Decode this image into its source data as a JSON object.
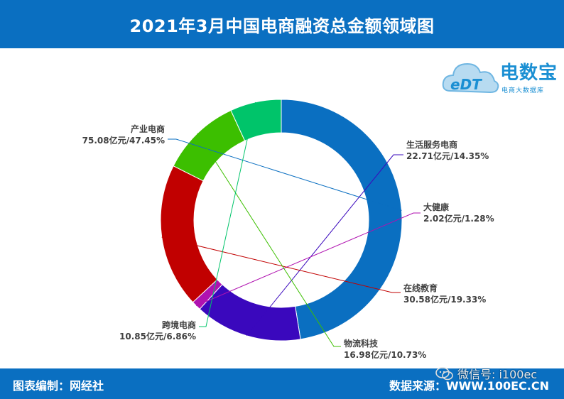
{
  "header": {
    "title": "2021年3月中国电商融资总金额领域图"
  },
  "logo": {
    "mark": "eDT",
    "title": "电数宝",
    "subtitle": "电商大数据库"
  },
  "footer": {
    "left": "图表编制：网经社",
    "right": "数据来源：WWW.100EC.CN"
  },
  "watermark": {
    "text": "微信号: i100ec",
    "icon": "wechat-icon"
  },
  "chart_data": {
    "type": "pie",
    "title": "2021年3月中国电商融资总金额领域图",
    "donut": true,
    "unit": "亿元",
    "categories": [
      "产业电商",
      "生活服务电商",
      "大健康",
      "在线教育",
      "物流科技",
      "跨境电商"
    ],
    "values": [
      75.08,
      22.71,
      2.02,
      30.58,
      16.98,
      10.85
    ],
    "percents": [
      47.45,
      14.35,
      1.28,
      19.33,
      10.73,
      6.86
    ],
    "colors": [
      "#0a6fc1",
      "#3a08bd",
      "#b012b0",
      "#c10000",
      "#3cbf00",
      "#00c46a"
    ],
    "labels": [
      "75.08亿元/47.45%",
      "22.71亿元/14.35%",
      "2.02亿元/1.28%",
      "30.58亿元/19.33%",
      "16.98亿元/10.73%",
      "10.85亿元/6.86%"
    ]
  }
}
